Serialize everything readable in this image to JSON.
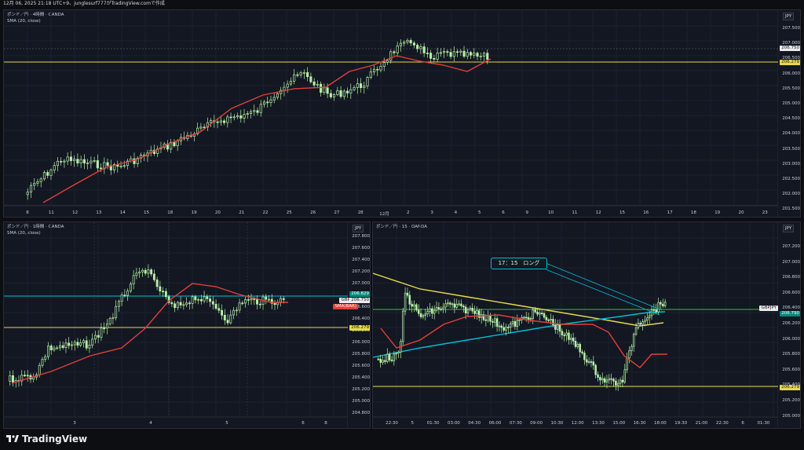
{
  "header": {
    "text": "12月 06, 2025 21:18 UTC+9、junglesurf777がTradingView.comで作成"
  },
  "footer": {
    "brand": "TradingView"
  },
  "colors": {
    "bg": "#131722",
    "up": "#b7f0a8",
    "down": "#b7f0a8",
    "sma": "#e0403a",
    "level": "#e6d84a",
    "cyan": "#00bcd4"
  },
  "panel_top": {
    "title": "ポンド／円 · 4時間 · OANDA",
    "indicator": "SMA (20, close)",
    "currency": "JPY",
    "y_ticks": [
      "207.500",
      "207.000",
      "206.500",
      "206.000",
      "205.500",
      "205.000",
      "204.500",
      "204.000",
      "203.500",
      "203.000",
      "202.500",
      "202.000",
      "201.500"
    ],
    "price_tag": "206.750",
    "level_tag": "206.279",
    "x_ticks": [
      "8",
      "11",
      "12",
      "13",
      "14",
      "15",
      "18",
      "19",
      "20",
      "21",
      "22",
      "25",
      "26",
      "27",
      "28",
      "12月",
      "2",
      "3",
      "4",
      "5",
      "6",
      "9",
      "10",
      "11",
      "12",
      "15",
      "16",
      "17",
      "18",
      "19",
      "20",
      "23"
    ]
  },
  "panel_bl": {
    "title": "ポンド／円 · 1時間 · OANDA",
    "indicator": "SMA (20, close)",
    "currency": "JPY",
    "y_ticks": [
      "207.800",
      "207.600",
      "207.400",
      "207.200",
      "207.000",
      "206.800",
      "206.600",
      "206.400",
      "206.200",
      "206.000",
      "205.800",
      "205.600",
      "205.400",
      "205.200",
      "205.000",
      "204.800"
    ],
    "tag_cyan": "206.829",
    "tag_pair": "GBPJPY",
    "tag_price": "206.750",
    "tag_sma": "SMA(BAR)",
    "tag_level": "206.279",
    "x_ticks": [
      "3",
      "4",
      "5",
      "6",
      "8"
    ]
  },
  "panel_br": {
    "title": "ポンド／円 · 15 · OANDA",
    "currency": "JPY",
    "callout": "17：15　ロング",
    "y_ticks": [
      "207.200",
      "207.000",
      "206.800",
      "206.600",
      "206.400",
      "206.200",
      "206.000",
      "205.800",
      "205.600",
      "205.400",
      "205.200",
      "205.000"
    ],
    "tag_pair": "GBPJPY",
    "tag_price": "206.790",
    "tag_level": "206.279",
    "x_ticks": [
      "22:30",
      "5",
      "01:30",
      "03:00",
      "04:30",
      "06:00",
      "07:30",
      "09:00",
      "10:30",
      "12:00",
      "13:30",
      "15:00",
      "16:30",
      "18:00",
      "19:30",
      "21:00",
      "22:30",
      "6",
      "01:30"
    ]
  }
}
